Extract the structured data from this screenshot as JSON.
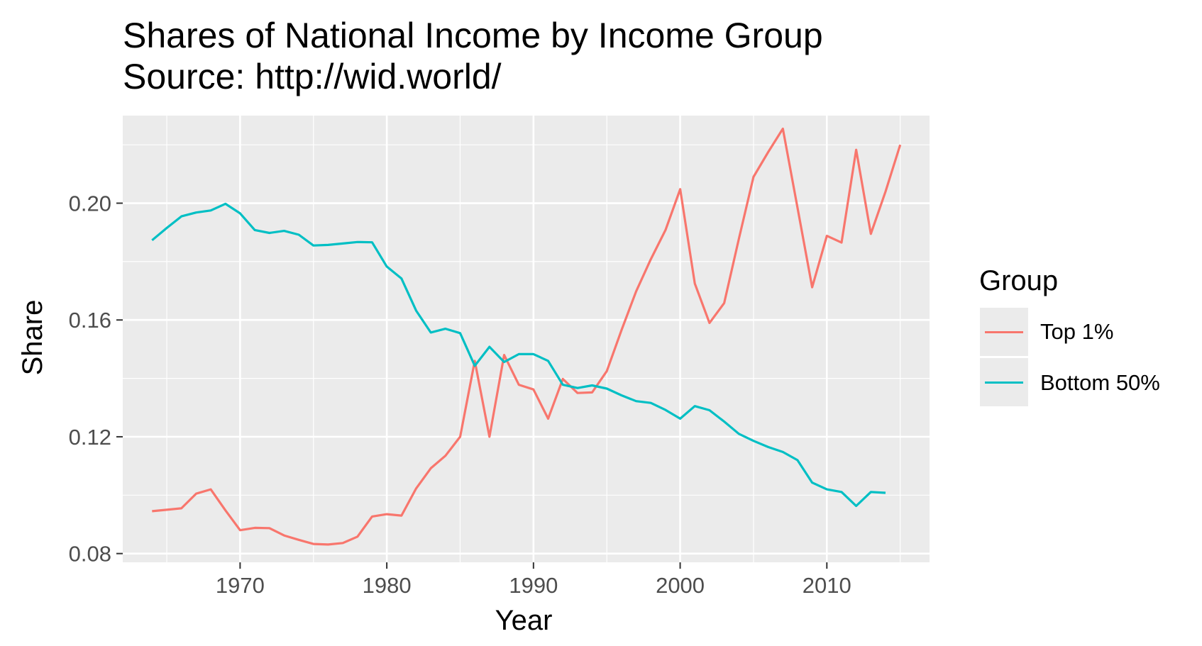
{
  "chart_data": {
    "type": "line",
    "title": "Shares of National Income by Income Group",
    "subtitle": "Source: http://wid.world/",
    "xlabel": "Year",
    "ylabel": "Share",
    "xlim": [
      1962,
      2017
    ],
    "ylim": [
      0.077,
      0.23
    ],
    "xticks": [
      1970,
      1980,
      1990,
      2000,
      2010
    ],
    "yticks": [
      0.08,
      0.12,
      0.16,
      0.2
    ],
    "ytick_labels": [
      "0.08",
      "0.12",
      "0.16",
      "0.20"
    ],
    "xtick_labels": [
      "1970",
      "1980",
      "1990",
      "2000",
      "2010"
    ],
    "grid": true,
    "background": "#ebebeb",
    "legend": {
      "title": "Group",
      "position": "right",
      "entries": [
        "Top 1%",
        "Bottom 50%"
      ]
    },
    "x": [
      1964,
      1965,
      1966,
      1967,
      1968,
      1969,
      1970,
      1971,
      1972,
      1973,
      1974,
      1975,
      1976,
      1977,
      1978,
      1979,
      1980,
      1981,
      1982,
      1983,
      1984,
      1985,
      1986,
      1987,
      1988,
      1989,
      1990,
      1991,
      1992,
      1993,
      1994,
      1995,
      1996,
      1997,
      1998,
      1999,
      2000,
      2001,
      2002,
      2003,
      2004,
      2005,
      2006,
      2007,
      2008,
      2009,
      2010,
      2011,
      2012,
      2013,
      2014,
      2015
    ],
    "series": [
      {
        "name": "Top 1%",
        "color": "#f8766d",
        "values": [
          0.0945,
          0.095,
          0.0955,
          0.1005,
          0.102,
          0.0948,
          0.088,
          0.0888,
          0.0887,
          0.0862,
          0.0847,
          0.0833,
          0.0831,
          0.0836,
          0.0858,
          0.0927,
          0.0935,
          0.093,
          0.1023,
          0.1092,
          0.1135,
          0.12,
          0.146,
          0.12,
          0.148,
          0.1378,
          0.1362,
          0.1262,
          0.1398,
          0.135,
          0.1352,
          0.1425,
          0.1565,
          0.1698,
          0.1808,
          0.1908,
          0.2048,
          0.1725,
          0.159,
          0.1658,
          0.1878,
          0.209,
          0.2175,
          0.2255,
          0.1985,
          0.1712,
          0.1888,
          0.1865,
          0.2183,
          0.1895,
          0.204,
          0.22
        ]
      },
      {
        "name": "Bottom 50%",
        "color": "#00bfc4",
        "values": [
          0.1873,
          0.1915,
          0.1955,
          0.1968,
          0.1975,
          0.1998,
          0.1965,
          0.1908,
          0.1898,
          0.1905,
          0.1892,
          0.1855,
          0.1857,
          0.1862,
          0.1867,
          0.1866,
          0.1783,
          0.1742,
          0.1632,
          0.1557,
          0.157,
          0.1555,
          0.1443,
          0.1508,
          0.1456,
          0.1483,
          0.1483,
          0.146,
          0.1378,
          0.1367,
          0.1376,
          0.1365,
          0.1342,
          0.1322,
          0.1316,
          0.1292,
          0.1262,
          0.1305,
          0.1291,
          0.1252,
          0.121,
          0.1186,
          0.1165,
          0.1148,
          0.112,
          0.1043,
          0.102,
          0.1011,
          0.0963,
          0.1011,
          0.1008,
          null
        ]
      }
    ]
  }
}
